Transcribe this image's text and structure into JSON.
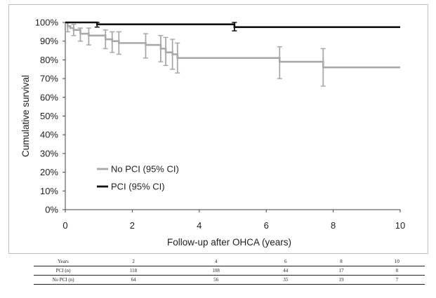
{
  "chart_data": {
    "type": "line",
    "ylabel": "Cumulative survival",
    "xlabel": "Follow-up after OHCA (years)",
    "x_ticks": [
      0,
      2,
      4,
      6,
      8,
      10
    ],
    "y_ticks": [
      "0%",
      "10%",
      "20%",
      "30%",
      "40%",
      "50%",
      "60%",
      "70%",
      "80%",
      "90%",
      "100%"
    ],
    "xlim": [
      0,
      10
    ],
    "ylim": [
      0,
      100
    ],
    "grid": false,
    "legend_position": "lower-left",
    "series": [
      {
        "name": "No PCI (95% CI)",
        "color": "#a9a9a9",
        "style": "step",
        "points": [
          [
            0,
            100
          ],
          [
            0.07,
            98
          ],
          [
            0.15,
            97
          ],
          [
            0.25,
            96
          ],
          [
            0.45,
            94
          ],
          [
            0.7,
            93
          ],
          [
            1.2,
            91
          ],
          [
            1.4,
            90
          ],
          [
            1.6,
            89
          ],
          [
            2.4,
            88
          ],
          [
            2.85,
            86
          ],
          [
            3.0,
            84
          ],
          [
            3.2,
            83
          ],
          [
            3.35,
            81
          ],
          [
            6.4,
            79
          ],
          [
            7.7,
            76
          ],
          [
            10,
            76
          ]
        ],
        "ci": [
          {
            "x": 0.07,
            "low": 95,
            "high": 100
          },
          {
            "x": 0.25,
            "low": 93,
            "high": 99
          },
          {
            "x": 0.45,
            "low": 90,
            "high": 97
          },
          {
            "x": 0.7,
            "low": 88,
            "high": 97
          },
          {
            "x": 1.2,
            "low": 86,
            "high": 96
          },
          {
            "x": 1.4,
            "low": 84,
            "high": 95
          },
          {
            "x": 1.6,
            "low": 83,
            "high": 95
          },
          {
            "x": 2.4,
            "low": 81,
            "high": 94
          },
          {
            "x": 2.85,
            "low": 79,
            "high": 93
          },
          {
            "x": 3.0,
            "low": 77,
            "high": 92
          },
          {
            "x": 3.2,
            "low": 75,
            "high": 91
          },
          {
            "x": 3.35,
            "low": 73,
            "high": 89
          },
          {
            "x": 6.4,
            "low": 70,
            "high": 87
          },
          {
            "x": 7.7,
            "low": 66,
            "high": 86
          }
        ]
      },
      {
        "name": "PCI (95% CI)",
        "color": "#111111",
        "style": "step",
        "points": [
          [
            0,
            100
          ],
          [
            0.95,
            99
          ],
          [
            5.05,
            97.5
          ],
          [
            10,
            97.5
          ]
        ],
        "ci": [
          {
            "x": 0.95,
            "low": 97.5,
            "high": 100
          },
          {
            "x": 5.05,
            "low": 95.5,
            "high": 100
          }
        ]
      }
    ]
  },
  "risk_table": {
    "header": [
      "Years",
      "2",
      "4",
      "6",
      "8",
      "10"
    ],
    "rows": [
      [
        "PCI (n)",
        "118",
        "108",
        "44",
        "17",
        "8"
      ],
      [
        "No PCI (n)",
        "64",
        "56",
        "35",
        "19",
        "7"
      ]
    ]
  }
}
